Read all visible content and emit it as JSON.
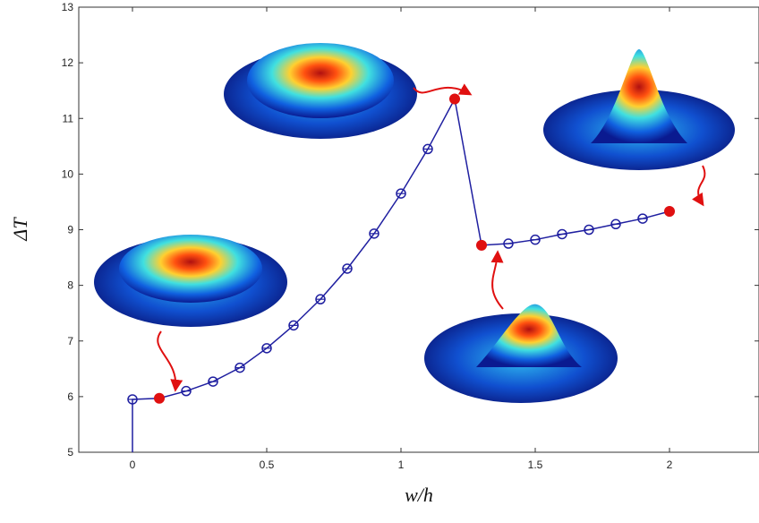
{
  "chart_data": {
    "type": "line",
    "x_label": "w/h",
    "y_label": "ΔT",
    "xlim": [
      -0.2,
      2.2
    ],
    "ylim": [
      5,
      13
    ],
    "xticks": [
      0,
      0.5,
      1,
      1.5,
      2
    ],
    "yticks": [
      5,
      6,
      7,
      8,
      9,
      10,
      11,
      12,
      13
    ],
    "series": [
      {
        "color": "#1f1fa0",
        "x": [
          0,
          0,
          0.1,
          0.2,
          0.3,
          0.4,
          0.5,
          0.6,
          0.7,
          0.8,
          0.9,
          1.0,
          1.1,
          1.2,
          1.3,
          1.4,
          1.5,
          1.6,
          1.7,
          1.8,
          1.9,
          2.0
        ],
        "values": [
          5,
          5.95,
          5.97,
          6.1,
          6.27,
          6.52,
          6.87,
          7.28,
          7.75,
          8.3,
          8.93,
          9.65,
          10.45,
          11.35,
          8.72,
          8.75,
          8.82,
          8.92,
          9.0,
          9.1,
          9.2,
          9.33
        ]
      },
      {
        "color": "#e01010",
        "x": [
          0.1,
          1.2,
          1.3,
          2.0
        ],
        "values": [
          5.97,
          11.35,
          8.72,
          9.33
        ]
      }
    ]
  }
}
